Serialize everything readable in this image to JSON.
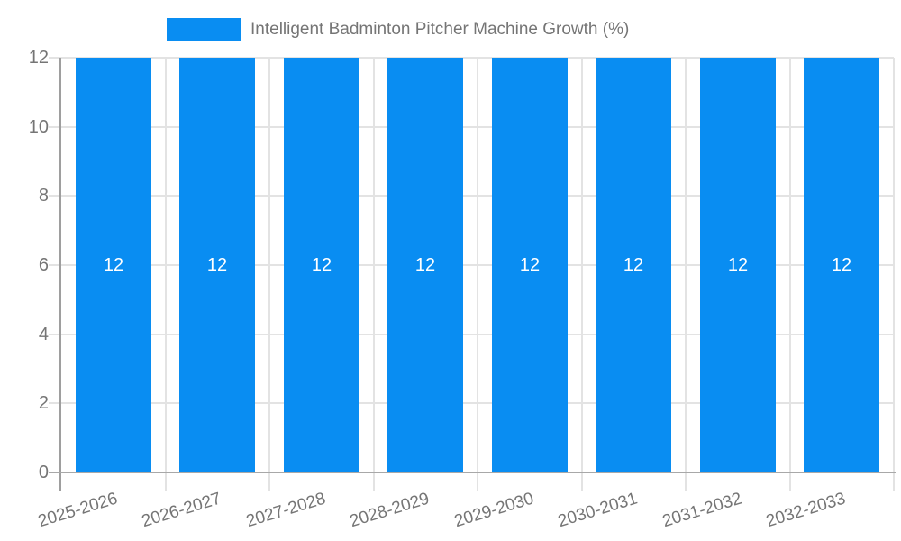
{
  "chart_data": {
    "type": "bar",
    "title": "Intelligent Badminton Pitcher Machine Growth (%)",
    "categories": [
      "2025-2026",
      "2026-2027",
      "2027-2028",
      "2028-2029",
      "2029-2030",
      "2030-2031",
      "2031-2032",
      "2032-2033"
    ],
    "values": [
      12,
      12,
      12,
      12,
      12,
      12,
      12,
      12
    ],
    "bar_value_labels": [
      "12",
      "12",
      "12",
      "12",
      "12",
      "12",
      "12",
      "12"
    ],
    "xlabel": "",
    "ylabel": "",
    "ylim": [
      0,
      12
    ],
    "yticks": [
      0,
      2,
      4,
      6,
      8,
      10,
      12
    ],
    "grid": true,
    "legend_position": "top",
    "legend_entries": [
      "Intelligent Badminton Pitcher Machine Growth (%)"
    ],
    "colors": {
      "bar": "#098df2",
      "bar_label": "#ffffff",
      "grid_line": "#e3e3e3",
      "axis_line": "#9e9e9e",
      "baseline": "#a8a8a8",
      "tick_text": "#757575",
      "background": "#ffffff"
    }
  }
}
